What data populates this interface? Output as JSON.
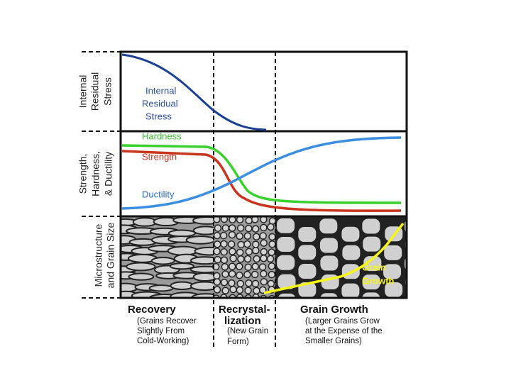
{
  "row_labels": [
    [
      "Internal",
      "Residual",
      "Stress"
    ],
    [
      "Strength,",
      "Hardness,",
      "& Ductility"
    ],
    [
      "Microstructure",
      "and Grain Size"
    ]
  ],
  "curve_labels": {
    "stress": [
      "Internal",
      "Residual",
      "Stress"
    ],
    "hardness": "Hardness",
    "strength": "Strength",
    "ductility": "Ductility",
    "grain_growth": [
      "Grain",
      "Growth"
    ]
  },
  "stages": [
    {
      "title": [
        "Recovery"
      ],
      "note": [
        "(Grains Recover",
        "Slightly From",
        "Cold-Working)"
      ]
    },
    {
      "title": [
        "Recrystal-",
        "lization"
      ],
      "note": [
        "(New Grain",
        "Form)"
      ]
    },
    {
      "title": [
        "Grain Growth"
      ],
      "note": [
        "(Larger Grains Grow",
        "at the Expense of the",
        "Smaller Grains)"
      ]
    }
  ]
}
